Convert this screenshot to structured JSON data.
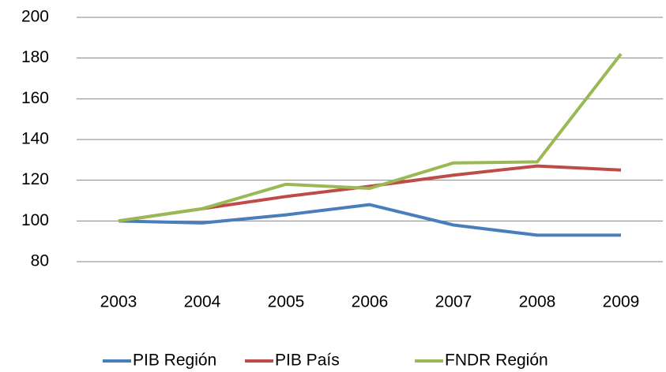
{
  "chart_data": {
    "type": "line",
    "categories": [
      "2003",
      "2004",
      "2005",
      "2006",
      "2007",
      "2008",
      "2009"
    ],
    "series": [
      {
        "name": "PIB Región",
        "color": "#4a7ebb",
        "values": [
          100,
          99,
          103,
          108,
          98,
          93,
          93
        ]
      },
      {
        "name": "PIB País",
        "color": "#be4b48",
        "values": [
          100,
          106,
          112,
          117,
          122.5,
          127,
          125
        ]
      },
      {
        "name": "FNDR Región",
        "color": "#98b954",
        "values": [
          100,
          106,
          118,
          116,
          128.5,
          129,
          182
        ]
      }
    ],
    "ylim": [
      80,
      200
    ],
    "yticks": [
      80,
      100,
      120,
      140,
      160,
      180,
      200
    ],
    "grid": true,
    "legend": "bottom"
  }
}
